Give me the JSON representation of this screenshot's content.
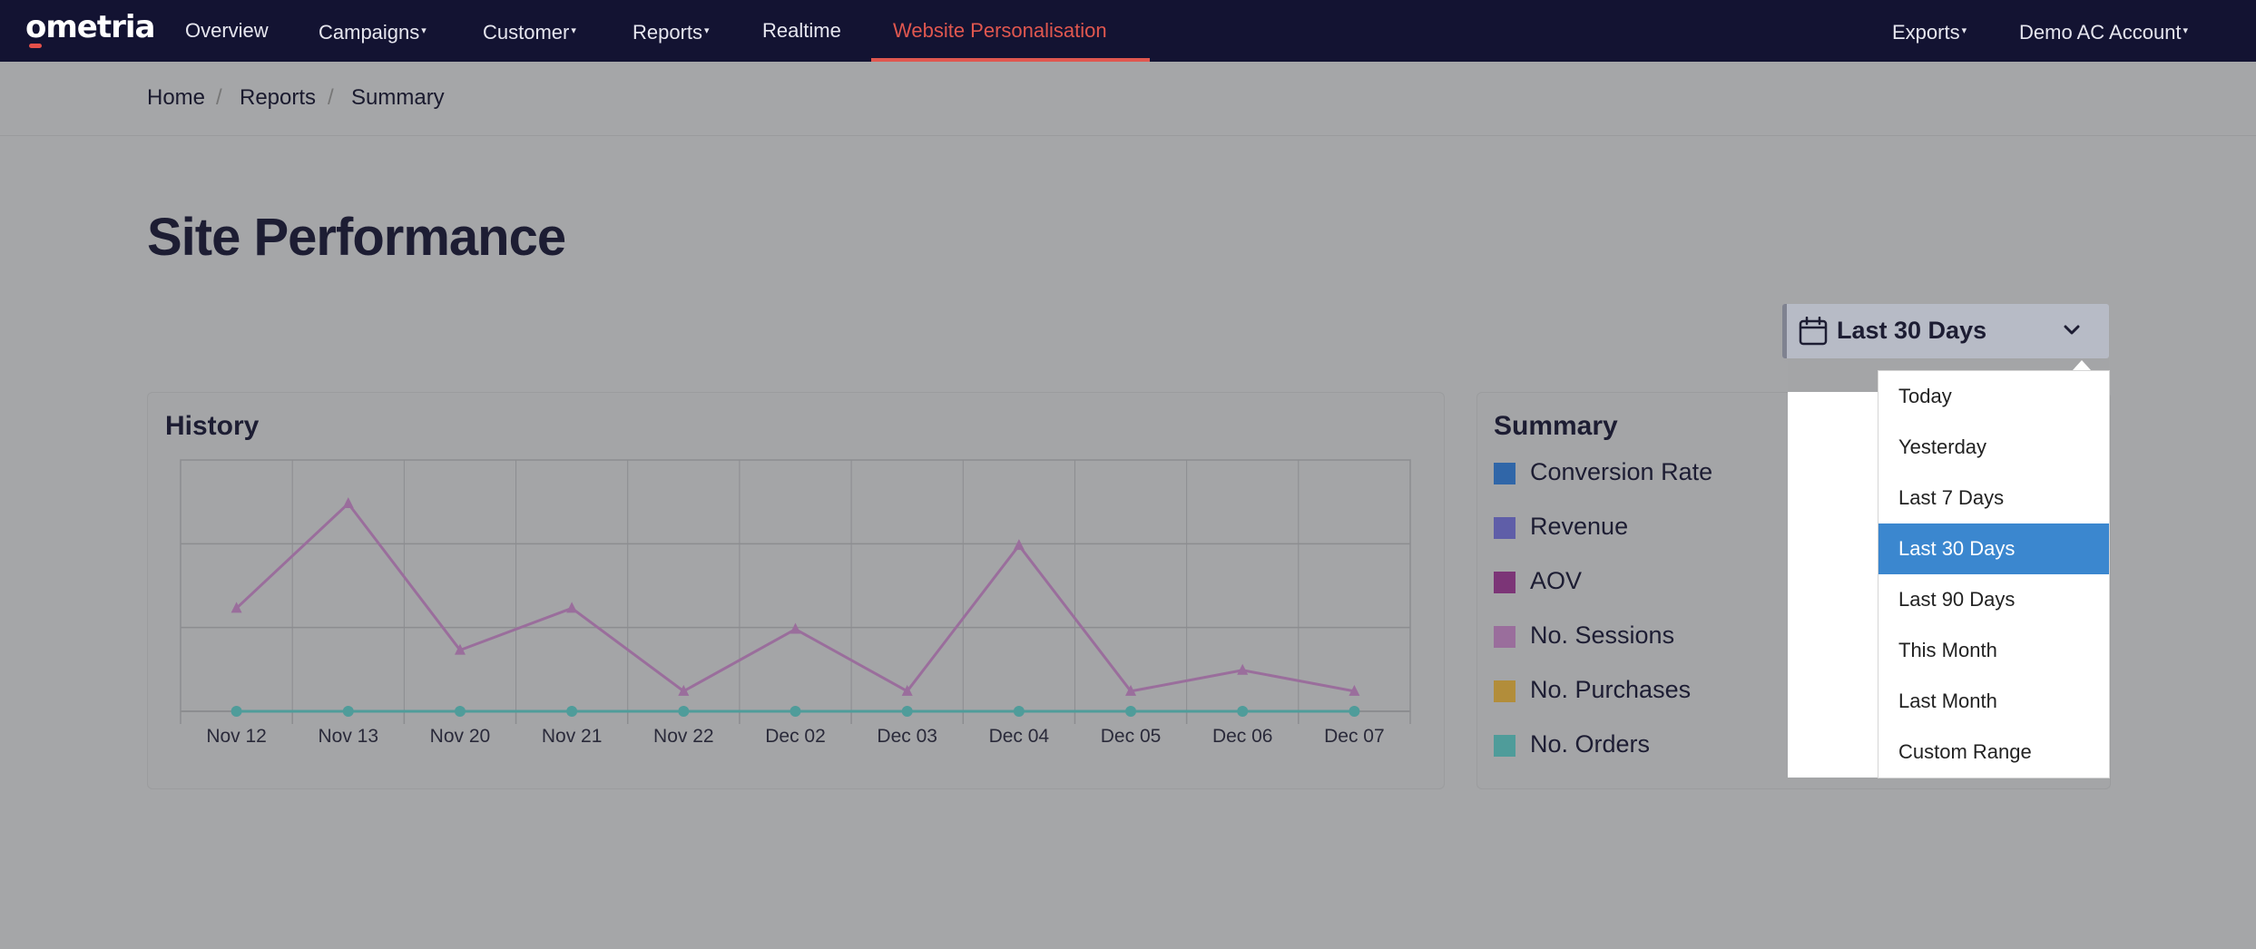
{
  "nav": {
    "logo": "ometria",
    "items": [
      {
        "label": "Overview",
        "dropdown": false
      },
      {
        "label": "Campaigns",
        "dropdown": true
      },
      {
        "label": "Customer",
        "dropdown": true
      },
      {
        "label": "Reports",
        "dropdown": true
      },
      {
        "label": "Realtime",
        "dropdown": false
      },
      {
        "label": "Website Personalisation",
        "dropdown": false,
        "active": true
      }
    ],
    "right_items": [
      {
        "label": "Exports",
        "dropdown": true
      },
      {
        "label": "Demo AC Account",
        "dropdown": true
      }
    ],
    "caret": "▾",
    "accent_color": "#e0574f",
    "bg_color": "#131332"
  },
  "breadcrumb": {
    "items": [
      "Home",
      "Reports",
      "Summary"
    ],
    "separator": "/"
  },
  "page_title": "Site Performance",
  "date_picker": {
    "selected": "Last 30 Days",
    "icon": "calendar-icon",
    "chevron": "chevron-down-icon",
    "options": [
      "Today",
      "Yesterday",
      "Last 7 Days",
      "Last 30 Days",
      "Last 90 Days",
      "This Month",
      "Last Month",
      "Custom Range"
    ],
    "selected_color": "#3b87cf"
  },
  "history": {
    "title": "History"
  },
  "summary": {
    "title": "Summary",
    "legend": [
      {
        "label": "Conversion Rate",
        "color": "#3066a8"
      },
      {
        "label": "Revenue",
        "color": "#5f5ea8"
      },
      {
        "label": "AOV",
        "color": "#7c3577"
      },
      {
        "label": "No. Sessions",
        "color": "#9a6e9c"
      },
      {
        "label": "No. Purchases",
        "color": "#b28d3a"
      },
      {
        "label": "No. Orders",
        "color": "#4f9c9a"
      }
    ]
  },
  "chart_data": {
    "type": "line",
    "title": "History",
    "categories": [
      "Nov 12",
      "Nov 13",
      "Nov 20",
      "Nov 21",
      "Nov 22",
      "Dec 02",
      "Dec 03",
      "Dec 04",
      "Dec 05",
      "Dec 06",
      "Dec 07"
    ],
    "ylim": [
      0,
      3
    ],
    "grid": true,
    "series": [
      {
        "name": "No. Sessions",
        "color": "#9a6e9c",
        "marker": "triangle",
        "values": [
          1.23,
          2.48,
          0.73,
          1.23,
          0.24,
          0.98,
          0.24,
          1.98,
          0.24,
          0.49,
          0.24
        ]
      },
      {
        "name": "No. Orders",
        "color": "#4f9c9a",
        "marker": "circle",
        "values": [
          0,
          0,
          0,
          0,
          0,
          0,
          0,
          0,
          0,
          0,
          0
        ]
      }
    ]
  }
}
